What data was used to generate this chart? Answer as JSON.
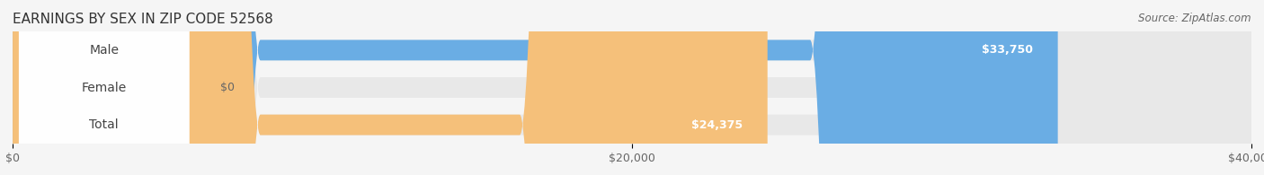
{
  "title": "EARNINGS BY SEX IN ZIP CODE 52568",
  "source": "Source: ZipAtlas.com",
  "categories": [
    "Male",
    "Female",
    "Total"
  ],
  "values": [
    33750,
    0,
    24375
  ],
  "bar_colors": [
    "#6aade4",
    "#f4a0b5",
    "#f5c07a"
  ],
  "label_colors": [
    "#6aade4",
    "#f4a0b5",
    "#f5c07a"
  ],
  "value_labels": [
    "$33,750",
    "$0",
    "$24,375"
  ],
  "xlim": [
    0,
    40000
  ],
  "xticks": [
    0,
    20000,
    40000
  ],
  "xticklabels": [
    "$0",
    "$20,000",
    "$40,000"
  ],
  "background_color": "#f5f5f5",
  "bar_background_color": "#e8e8e8",
  "title_fontsize": 11,
  "bar_height": 0.55,
  "label_fontsize": 10
}
